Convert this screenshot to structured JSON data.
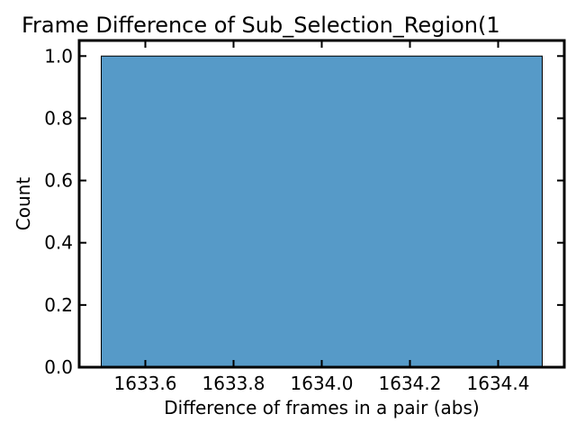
{
  "chart_data": {
    "type": "bar",
    "title": "Frame Difference of Sub_Selection_Region(1",
    "xlabel": "Difference of frames in a pair (abs)",
    "ylabel": "Count",
    "xlim": [
      1633.45,
      1634.55
    ],
    "ylim": [
      0.0,
      1.05
    ],
    "xticks": [
      "1633.6",
      "1633.8",
      "1634.0",
      "1634.2",
      "1634.4"
    ],
    "xtick_values": [
      1633.6,
      1633.8,
      1634.0,
      1634.2,
      1634.4
    ],
    "yticks": [
      "0.0",
      "0.2",
      "0.4",
      "0.6",
      "0.8",
      "1.0"
    ],
    "ytick_values": [
      0.0,
      0.2,
      0.4,
      0.6,
      0.8,
      1.0
    ],
    "bins": [
      {
        "x0": 1633.5,
        "x1": 1634.5,
        "value": 1.0
      }
    ],
    "grid": false,
    "bar_color": "#569ac8",
    "edge_color": "#000000"
  }
}
